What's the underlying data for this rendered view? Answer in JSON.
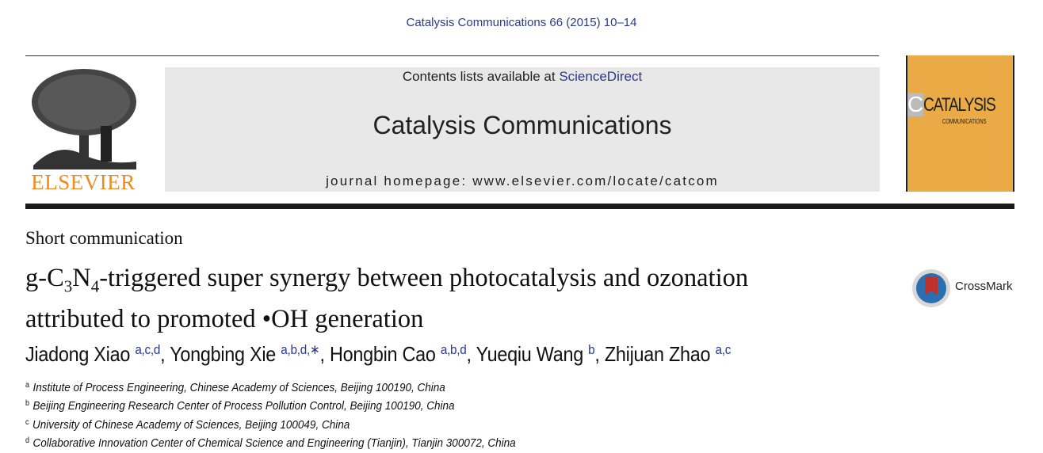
{
  "journal_ref": "Catalysis Communications 66 (2015) 10–14",
  "banner": {
    "contents_prefix": "Contents lists available at ",
    "contents_link": "ScienceDirect",
    "journal_title": "Catalysis Communications",
    "homepage": "journal homepage: www.elsevier.com/locate/catcom"
  },
  "publisher_logo": "ELSEVIER",
  "cover": {
    "letter": "C",
    "title": "CATALYSIS",
    "subtitle": "COMMUNICATIONS",
    "color": "#eaaa45"
  },
  "article_type": "Short communication",
  "title": {
    "p1": "g-C",
    "sub1": "3",
    "p2": "N",
    "sub2": "4",
    "p3": "-triggered super synergy between photocatalysis and ozonation",
    "line2": "attributed to promoted •OH generation"
  },
  "crossmark": "CrossMark",
  "authors": [
    {
      "name": "Jiadong Xiao",
      "sup": "a,c,d"
    },
    {
      "name": "Yongbing Xie",
      "sup": "a,b,d,∗"
    },
    {
      "name": "Hongbin Cao",
      "sup": "a,b,d"
    },
    {
      "name": "Yueqiu Wang",
      "sup": "b"
    },
    {
      "name": "Zhijuan Zhao",
      "sup": "a,c"
    }
  ],
  "affiliations": [
    {
      "key": "a",
      "text": "Institute of Process Engineering, Chinese Academy of Sciences, Beijing 100190, China"
    },
    {
      "key": "b",
      "text": "Beijing Engineering Research Center of Process Pollution Control, Beijing 100190, China"
    },
    {
      "key": "c",
      "text": "University of Chinese Academy of Sciences, Beijing 100049, China"
    },
    {
      "key": "d",
      "text": "Collaborative Innovation Center of Chemical Science and Engineering (Tianjin), Tianjin 300072, China"
    }
  ]
}
